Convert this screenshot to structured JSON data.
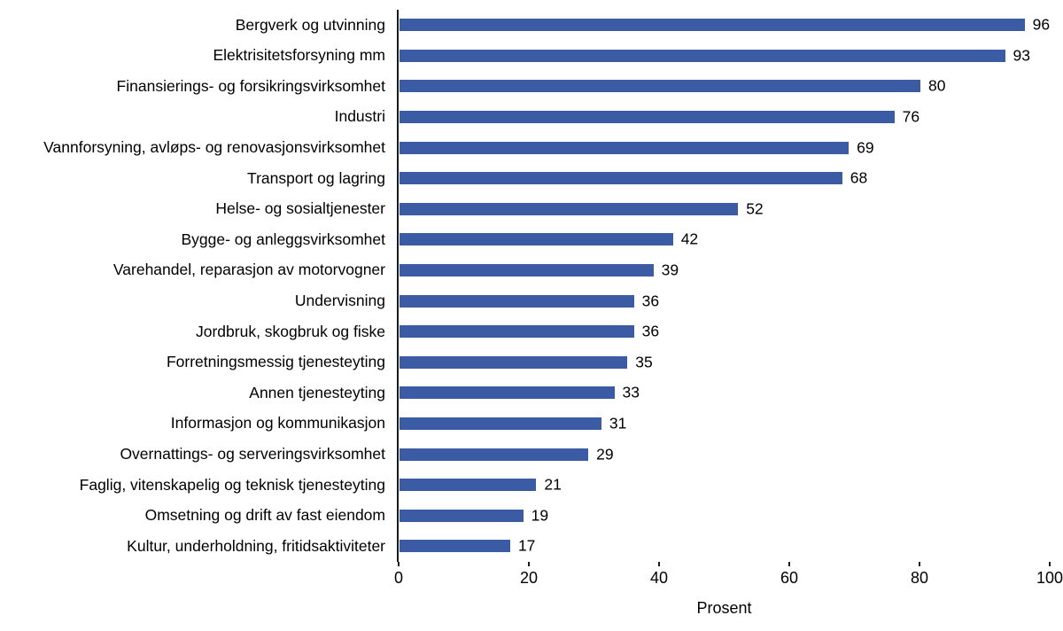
{
  "chart_data": {
    "type": "bar",
    "orientation": "horizontal",
    "title": "",
    "xlabel": "Prosent",
    "ylabel": "",
    "xlim": [
      0,
      100
    ],
    "xticks": [
      0,
      20,
      40,
      60,
      80,
      100
    ],
    "grid": false,
    "legend": "none",
    "bar_color": "#3b5ba5",
    "value_labels": true,
    "categories": [
      "Bergverk og utvinning",
      "Elektrisitetsforsyning mm",
      "Finansierings- og forsikringsvirksomhet",
      "Industri",
      "Vannforsyning, avløps- og renovasjonsvirksomhet",
      "Transport og lagring",
      "Helse- og sosialtjenester",
      "Bygge- og anleggsvirksomhet",
      "Varehandel, reparasjon av motorvogner",
      "Undervisning",
      "Jordbruk, skogbruk og fiske",
      "Forretningsmessig tjenesteyting",
      "Annen tjenesteyting",
      "Informasjon og kommunikasjon",
      "Overnattings- og serveringsvirksomhet",
      "Faglig, vitenskapelig og teknisk tjenesteyting",
      "Omsetning og drift av fast eiendom",
      "Kultur, underholdning, fritidsaktiviteter"
    ],
    "values": [
      96,
      93,
      80,
      76,
      69,
      68,
      52,
      42,
      39,
      36,
      36,
      35,
      33,
      31,
      29,
      21,
      19,
      17
    ]
  }
}
